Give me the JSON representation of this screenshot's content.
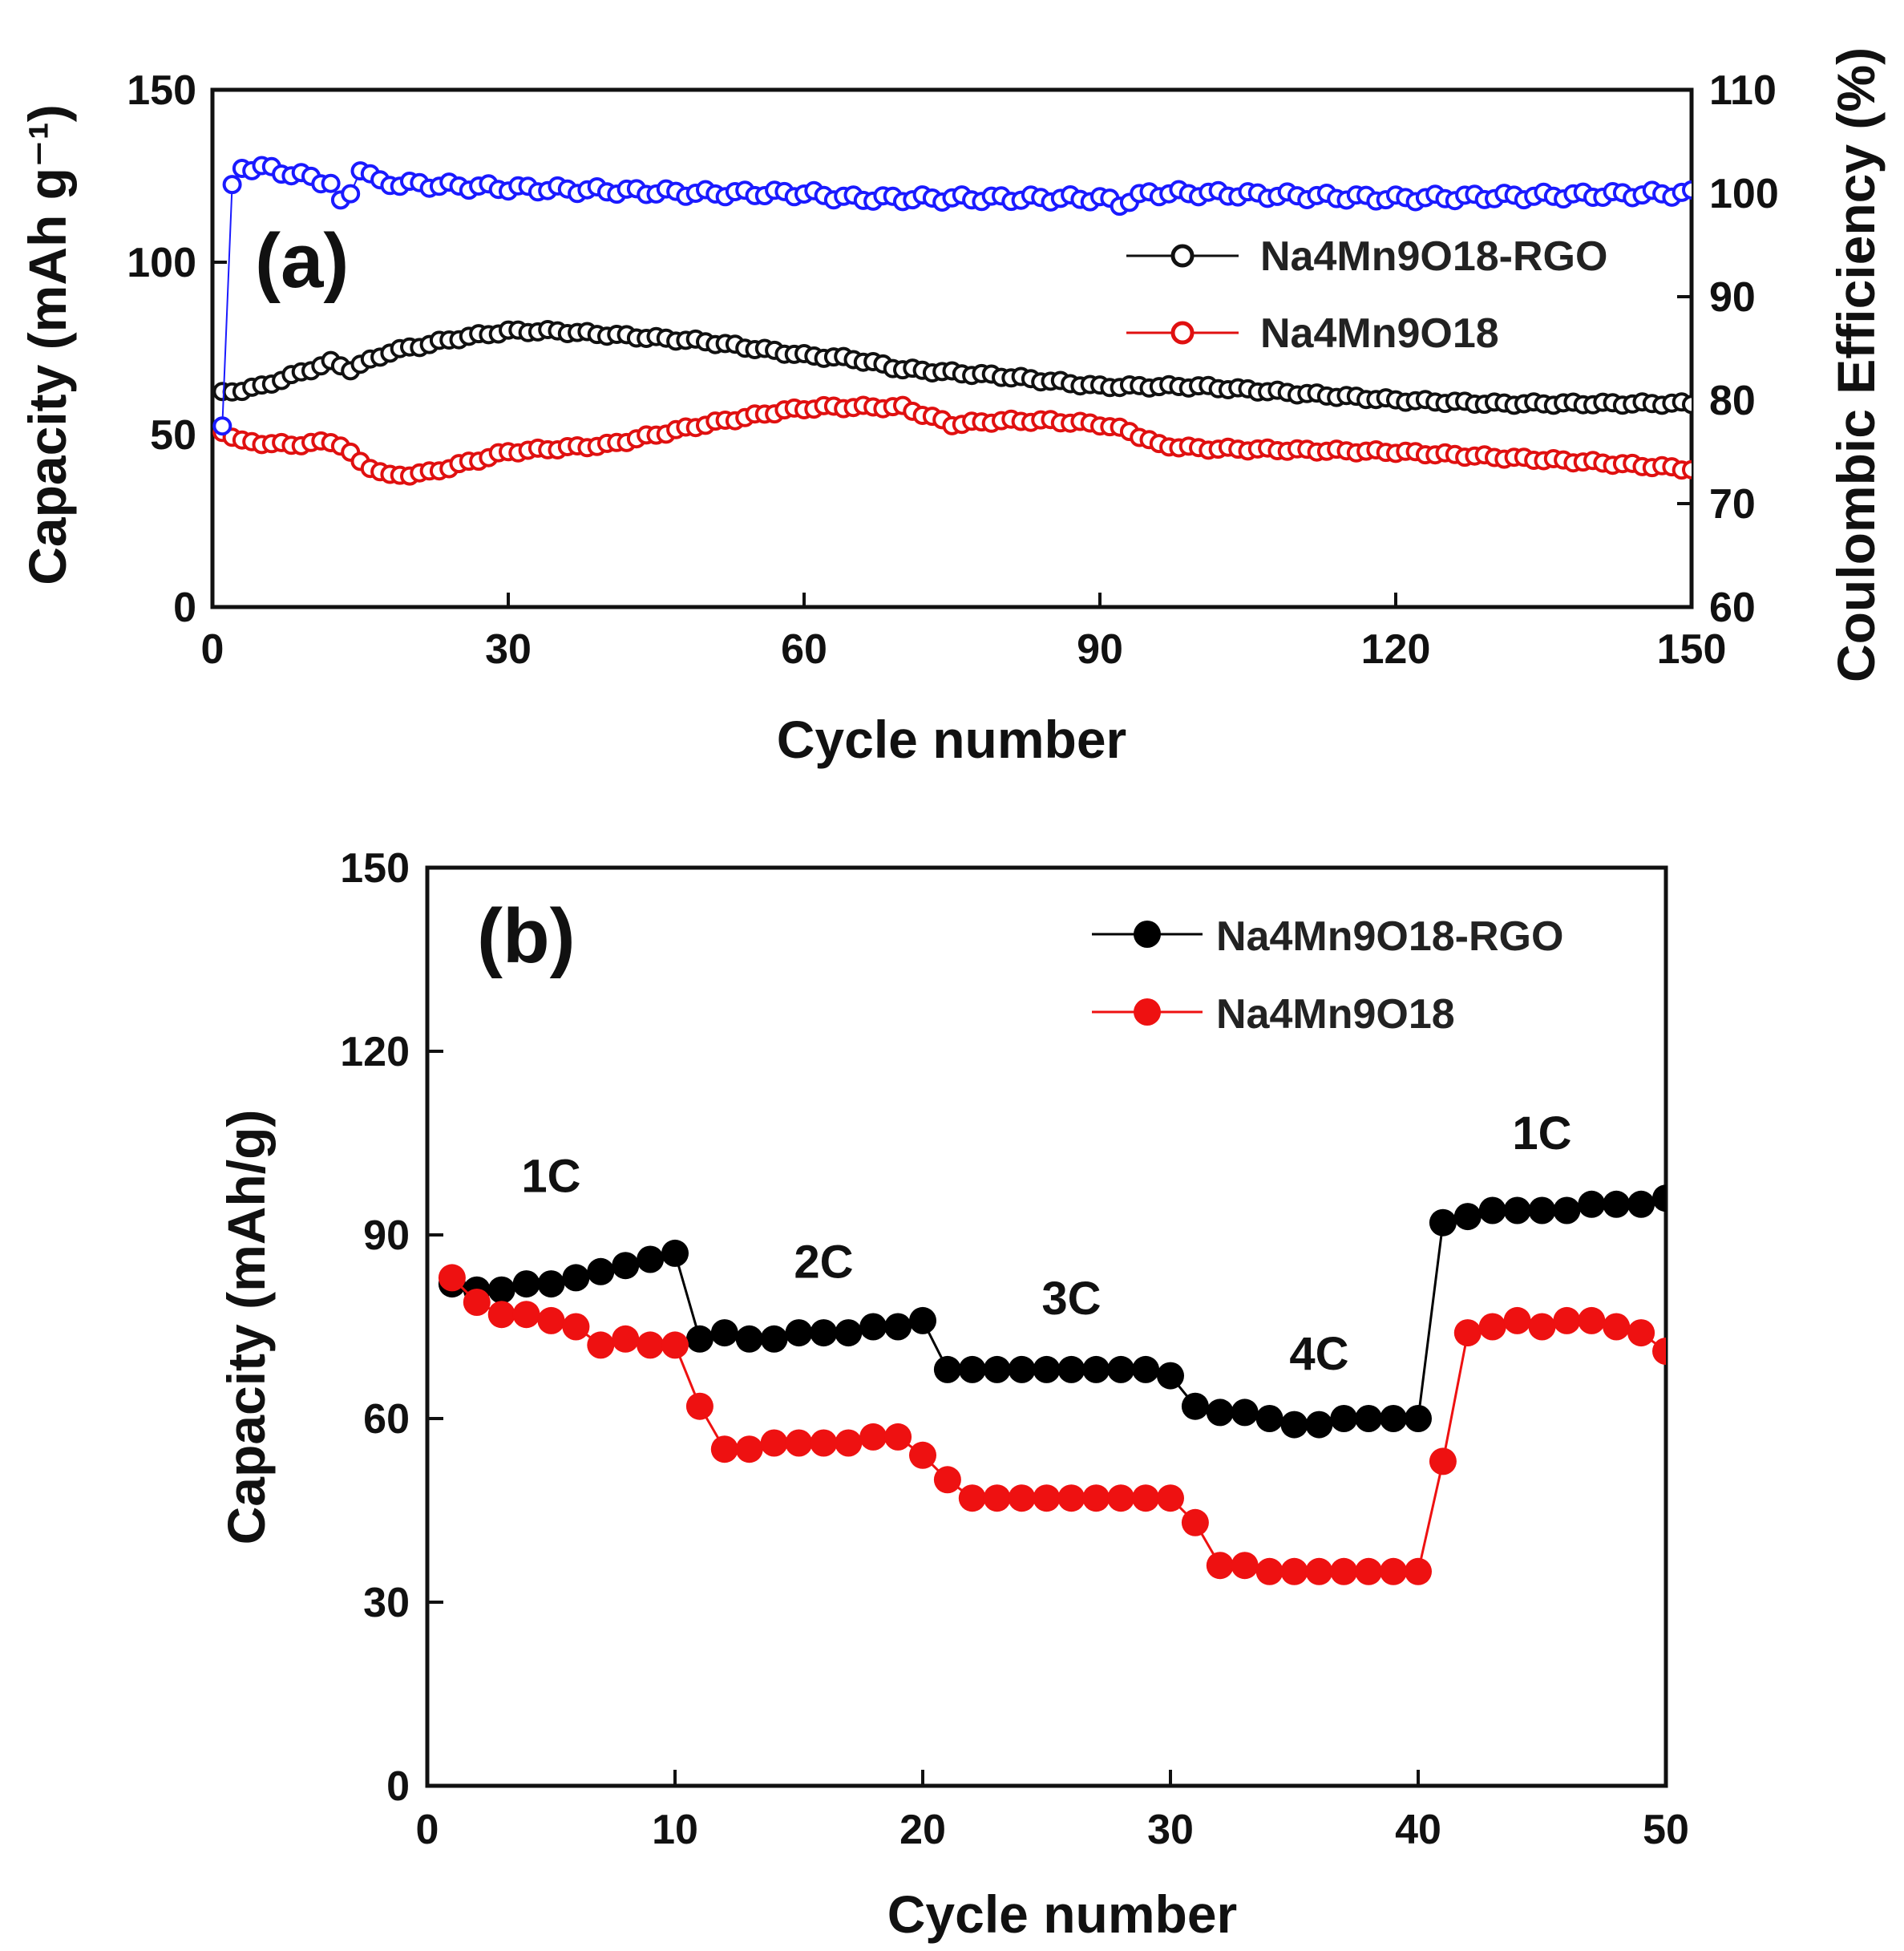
{
  "chart_data": [
    {
      "type": "scatter",
      "panel_label": "(a)",
      "xlabel": "Cycle number",
      "ylabel": "Capacity (mAh g⁻¹)",
      "y2label": "Coulombic Efficiency (%)",
      "xlim": [
        0,
        150
      ],
      "ylim": [
        0,
        150
      ],
      "y2lim": [
        60,
        110
      ],
      "xticks": [
        "0",
        "30",
        "60",
        "90",
        "120",
        "150"
      ],
      "yticks": [
        "0",
        "50",
        "100",
        "150"
      ],
      "y2ticks": [
        "60",
        "70",
        "80",
        "90",
        "100",
        "110"
      ],
      "legend": [
        "Na4Mn9O18-RGO",
        "Na4Mn9O18"
      ],
      "series": [
        {
          "name": "Na4Mn9O18-RGO",
          "axis": "left",
          "color": "#111111",
          "marker": "open-circle",
          "keypoints": [
            [
              1,
              62
            ],
            [
              5,
              64
            ],
            [
              10,
              69
            ],
            [
              12,
              71
            ],
            [
              14,
              69
            ],
            [
              18,
              74
            ],
            [
              25,
              78
            ],
            [
              30,
              80
            ],
            [
              35,
              80
            ],
            [
              40,
              79
            ],
            [
              50,
              77
            ],
            [
              55,
              75
            ],
            [
              60,
              73
            ],
            [
              65,
              72
            ],
            [
              70,
              69
            ],
            [
              80,
              67
            ],
            [
              90,
              64
            ],
            [
              100,
              64
            ],
            [
              110,
              62
            ],
            [
              120,
              60
            ],
            [
              130,
              59
            ],
            [
              150,
              59
            ]
          ]
        },
        {
          "name": "Na4Mn9O18",
          "axis": "left",
          "color": "#e01010",
          "marker": "open-circle",
          "keypoints": [
            [
              1,
              51
            ],
            [
              3,
              48
            ],
            [
              8,
              47
            ],
            [
              12,
              48
            ],
            [
              13,
              47
            ],
            [
              15,
              42
            ],
            [
              18,
              38
            ],
            [
              22,
              39
            ],
            [
              30,
              45
            ],
            [
              40,
              47
            ],
            [
              50,
              53
            ],
            [
              58,
              57
            ],
            [
              62,
              58
            ],
            [
              70,
              58
            ],
            [
              75,
              53
            ],
            [
              80,
              54
            ],
            [
              85,
              54
            ],
            [
              90,
              53
            ],
            [
              93,
              51
            ],
            [
              96,
              47
            ],
            [
              100,
              46
            ],
            [
              120,
              45
            ],
            [
              140,
              42
            ],
            [
              150,
              40
            ]
          ]
        },
        {
          "name": "Coulombic Efficiency",
          "axis": "right",
          "color": "#1a1aff",
          "marker": "open-circle",
          "keypoints": [
            [
              1,
              77.5
            ],
            [
              2,
              100.5
            ],
            [
              3,
              102.5
            ],
            [
              5,
              102.5
            ],
            [
              10,
              101.5
            ],
            [
              12,
              101
            ],
            [
              13,
              99
            ],
            [
              14,
              100
            ],
            [
              15,
              102.5
            ],
            [
              17,
              101
            ],
            [
              30,
              100.5
            ],
            [
              50,
              100
            ],
            [
              60,
              100
            ],
            [
              65,
              99.5
            ],
            [
              90,
              99.5
            ],
            [
              92,
              99
            ],
            [
              95,
              100
            ],
            [
              100,
              100
            ],
            [
              120,
              99.5
            ],
            [
              150,
              100
            ]
          ]
        }
      ]
    },
    {
      "type": "scatter",
      "panel_label": "(b)",
      "xlabel": "Cycle number",
      "ylabel": "Capacity (mAh/g)",
      "xlim": [
        0,
        50
      ],
      "ylim": [
        0,
        150
      ],
      "xticks": [
        "0",
        "10",
        "20",
        "30",
        "40",
        "50"
      ],
      "yticks": [
        "0",
        "30",
        "60",
        "90",
        "120",
        "150"
      ],
      "legend": [
        "Na4Mn9O18-RGO",
        "Na4Mn9O18"
      ],
      "rate_labels": [
        {
          "text": "1C",
          "x": 5,
          "y": 97
        },
        {
          "text": "2C",
          "x": 16,
          "y": 83
        },
        {
          "text": "3C",
          "x": 26,
          "y": 77
        },
        {
          "text": "4C",
          "x": 36,
          "y": 68
        },
        {
          "text": "1C",
          "x": 45,
          "y": 104
        }
      ],
      "series": [
        {
          "name": "Na4Mn9O18-RGO",
          "color": "#000000",
          "marker": "filled-circle",
          "x": [
            1,
            2,
            3,
            4,
            5,
            6,
            7,
            8,
            9,
            10,
            11,
            12,
            13,
            14,
            15,
            16,
            17,
            18,
            19,
            20,
            21,
            22,
            23,
            24,
            25,
            26,
            27,
            28,
            29,
            30,
            31,
            32,
            33,
            34,
            35,
            36,
            37,
            38,
            39,
            40,
            41,
            42,
            43,
            44,
            45,
            46,
            47,
            48,
            49,
            50
          ],
          "y": [
            82,
            81,
            81,
            82,
            82,
            83,
            84,
            85,
            86,
            87,
            73,
            74,
            73,
            73,
            74,
            74,
            74,
            75,
            75,
            76,
            68,
            68,
            68,
            68,
            68,
            68,
            68,
            68,
            68,
            67,
            62,
            61,
            61,
            60,
            59,
            59,
            60,
            60,
            60,
            60,
            92,
            93,
            94,
            94,
            94,
            94,
            95,
            95,
            95,
            96
          ]
        },
        {
          "name": "Na4Mn9O18",
          "color": "#ee1111",
          "marker": "filled-circle",
          "x": [
            1,
            2,
            3,
            4,
            5,
            6,
            7,
            8,
            9,
            10,
            11,
            12,
            13,
            14,
            15,
            16,
            17,
            18,
            19,
            20,
            21,
            22,
            23,
            24,
            25,
            26,
            27,
            28,
            29,
            30,
            31,
            32,
            33,
            34,
            35,
            36,
            37,
            38,
            39,
            40,
            41,
            42,
            43,
            44,
            45,
            46,
            47,
            48,
            49,
            50
          ],
          "y": [
            83,
            79,
            77,
            77,
            76,
            75,
            72,
            73,
            72,
            72,
            62,
            55,
            55,
            56,
            56,
            56,
            56,
            57,
            57,
            54,
            50,
            47,
            47,
            47,
            47,
            47,
            47,
            47,
            47,
            47,
            43,
            36,
            36,
            35,
            35,
            35,
            35,
            35,
            35,
            35,
            53,
            74,
            75,
            76,
            75,
            76,
            76,
            75,
            74,
            71
          ]
        }
      ]
    }
  ]
}
